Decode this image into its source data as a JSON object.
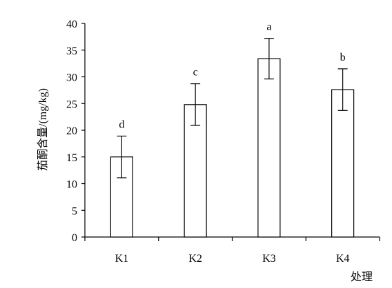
{
  "chart_data": {
    "type": "bar",
    "xlabel": "处理",
    "ylabel": "茄酮含量/(mg/kg)",
    "ylim": [
      0,
      40
    ],
    "yticks": [
      0,
      5,
      10,
      15,
      20,
      25,
      30,
      35,
      40
    ],
    "categories": [
      "K1",
      "K2",
      "K3",
      "K4"
    ],
    "values": [
      15,
      24.8,
      33.4,
      27.6
    ],
    "errors": [
      3.9,
      3.9,
      3.8,
      3.9
    ],
    "significance": [
      "d",
      "c",
      "a",
      "b"
    ],
    "bar_fill": "#ffffff",
    "bar_stroke": "#000000",
    "grid": false,
    "legend": "none"
  }
}
